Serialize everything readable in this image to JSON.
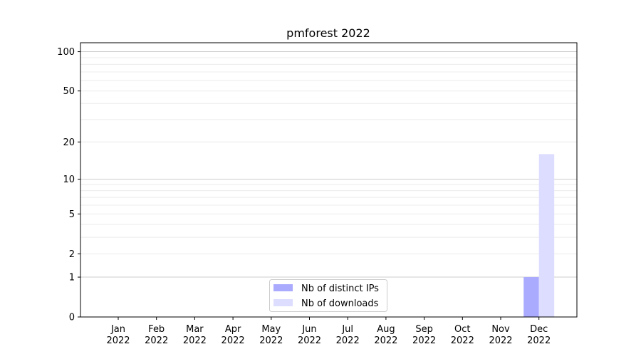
{
  "chart_data": {
    "type": "bar",
    "title": "pmforest 2022",
    "xlabel": "",
    "ylabel": "",
    "yscale": "log(1+y)",
    "ylim": [
      0,
      117
    ],
    "yticks": [
      0,
      1,
      2,
      5,
      10,
      20,
      50,
      100
    ],
    "ytick_labels": [
      "0",
      "1",
      "2",
      "5",
      "10",
      "20",
      "50",
      "100"
    ],
    "categories": [
      "Jan\n2022",
      "Feb\n2022",
      "Mar\n2022",
      "Apr\n2022",
      "May\n2022",
      "Jun\n2022",
      "Jul\n2022",
      "Aug\n2022",
      "Sep\n2022",
      "Oct\n2022",
      "Nov\n2022",
      "Dec\n2022"
    ],
    "category_lines": [
      [
        "Jan",
        "2022"
      ],
      [
        "Feb",
        "2022"
      ],
      [
        "Mar",
        "2022"
      ],
      [
        "Apr",
        "2022"
      ],
      [
        "May",
        "2022"
      ],
      [
        "Jun",
        "2022"
      ],
      [
        "Jul",
        "2022"
      ],
      [
        "Aug",
        "2022"
      ],
      [
        "Sep",
        "2022"
      ],
      [
        "Oct",
        "2022"
      ],
      [
        "Nov",
        "2022"
      ],
      [
        "Dec",
        "2022"
      ]
    ],
    "series": [
      {
        "name": "Nb of distinct IPs",
        "color": "#aaaaff",
        "values": [
          0,
          0,
          0,
          0,
          0,
          0,
          0,
          0,
          0,
          0,
          0,
          1
        ]
      },
      {
        "name": "Nb of downloads",
        "color": "#ddddff",
        "values": [
          0,
          0,
          0,
          0,
          0,
          0,
          0,
          0,
          0,
          0,
          0,
          16
        ]
      }
    ],
    "grid": {
      "major": true,
      "minor": true
    },
    "legend": "lower-center"
  }
}
